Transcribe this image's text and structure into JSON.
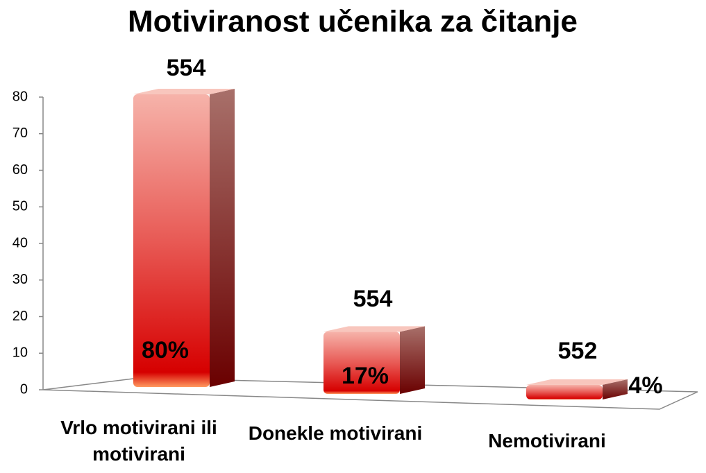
{
  "chart_data": {
    "type": "bar",
    "title": "Motiviranost učenika za čitanje",
    "categories": [
      "Vrlo motivirani ili motivirani",
      "Donekle motivirani",
      "Nemotivirani"
    ],
    "values": [
      80,
      17,
      4
    ],
    "value_labels": [
      "80%",
      "17%",
      "4%"
    ],
    "annotations": [
      "554",
      "554",
      "552"
    ],
    "color": "#e02020",
    "ylim": [
      0,
      80
    ],
    "yticks": [
      0,
      10,
      20,
      30,
      40,
      50,
      60,
      70,
      80
    ],
    "grid": false
  }
}
